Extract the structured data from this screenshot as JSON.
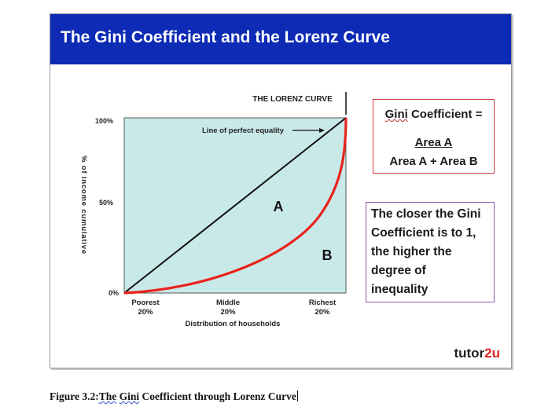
{
  "slide": {
    "title": "The Gini Coefficient and the Lorenz Curve",
    "header_color": "#0d2bb5",
    "logo": {
      "prefix": "tutor",
      "suffix": "2u"
    }
  },
  "chart": {
    "y_axis_title": "% of income cumulative",
    "y_ticks": [
      "100%",
      "50%",
      "0%"
    ],
    "x_ticks": [
      {
        "line1": "Poorest",
        "line2": "20%"
      },
      {
        "line1": "Middle",
        "line2": "20%"
      },
      {
        "line1": "Richest",
        "line2": "20%"
      }
    ],
    "x_axis_title": "Distribution of households",
    "lorenz_label": "THE LORENZ CURVE",
    "equality_label": "Line of perfect equality",
    "area_a": "A",
    "area_b": "B",
    "plot_fill": "#c9e9e9",
    "curve_color": "#e8231c"
  },
  "gini_box": {
    "line1": "Gini",
    "line1_rest": " Coefficient =",
    "line2": "Area A",
    "line3": "Area A + Area B"
  },
  "closer_box": {
    "lines": [
      "The closer the Gini",
      "Coefficient is to 1,",
      "the higher the",
      "degree of",
      "inequality"
    ]
  },
  "caption": {
    "prefix": "Figure 3.2:",
    "underlined": "The",
    "mid": " ",
    "underlined2": "Gini",
    "suffix": " Coefficient through Lorenz Curve"
  }
}
